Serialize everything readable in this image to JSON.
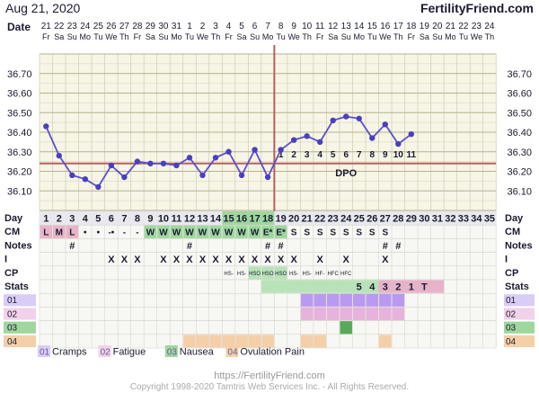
{
  "header": {
    "date": "Aug 21, 2020",
    "site": "FertilityFriend.com"
  },
  "row_labels": {
    "date": "Date",
    "day": "Day",
    "cm": "CM",
    "notes": "Notes",
    "i": "I",
    "cp": "CP",
    "stats": "Stats"
  },
  "chart_data": {
    "type": "line",
    "title": "",
    "xlabel": "Day",
    "ylabel": "",
    "ylim": [
      36.0,
      36.8
    ],
    "yticks": [
      "36.70",
      "36.60",
      "36.50",
      "36.40",
      "36.30",
      "36.20",
      "36.10"
    ],
    "grid": true,
    "coverline": 36.24,
    "ovulation_day": 18,
    "dpo_label": "DPO",
    "dates_top": [
      "21",
      "22",
      "23",
      "24",
      "25",
      "26",
      "27",
      "28",
      "29",
      "30",
      "31",
      "1",
      "2",
      "3",
      "4",
      "5",
      "6",
      "7",
      "8",
      "9",
      "10",
      "11",
      "12",
      "13",
      "14",
      "15",
      "16",
      "17",
      "18",
      "19",
      "20",
      "21",
      "22",
      "23",
      "24"
    ],
    "weekdays": [
      "Fr",
      "Sa",
      "Su",
      "Mo",
      "Tu",
      "We",
      "Th",
      "Fr",
      "Sa",
      "Su",
      "Mo",
      "Tu",
      "We",
      "Th",
      "Fr",
      "Sa",
      "Su",
      "Mo",
      "Tu",
      "We",
      "Th",
      "Fr",
      "Sa",
      "Su",
      "Mo",
      "Tu",
      "We",
      "Th",
      "Fr",
      "Sa",
      "Su",
      "Mo",
      "Tu",
      "We",
      "Th"
    ],
    "days": [
      "1",
      "2",
      "3",
      "4",
      "5",
      "6",
      "7",
      "8",
      "9",
      "10",
      "11",
      "12",
      "13",
      "14",
      "15",
      "16",
      "17",
      "18",
      "19",
      "20",
      "21",
      "22",
      "23",
      "24",
      "25",
      "26",
      "27",
      "28",
      "29",
      "30",
      "31",
      "32",
      "33",
      "34",
      "35"
    ],
    "series": [
      {
        "values": [
          36.43,
          36.28,
          36.18,
          36.16,
          36.12,
          36.23,
          36.17,
          36.25,
          36.24,
          36.24,
          36.23,
          36.27,
          36.18,
          36.27,
          36.3,
          36.18,
          36.31,
          36.17,
          36.31,
          36.36,
          36.38,
          36.35,
          36.46,
          36.48,
          36.47,
          36.37,
          36.44,
          36.34,
          36.39
        ]
      }
    ],
    "dpo_numbers": [
      {
        "day": 19,
        "n": "1"
      },
      {
        "day": 20,
        "n": "2"
      },
      {
        "day": 21,
        "n": "3"
      },
      {
        "day": 22,
        "n": "4"
      },
      {
        "day": 23,
        "n": "5"
      },
      {
        "day": 24,
        "n": "6"
      },
      {
        "day": 25,
        "n": "7"
      },
      {
        "day": 26,
        "n": "8"
      },
      {
        "day": 27,
        "n": "9"
      },
      {
        "day": 28,
        "n": "10"
      },
      {
        "day": 29,
        "n": "11"
      }
    ],
    "cm": [
      "L",
      "M",
      "L",
      "•",
      "•",
      "-•",
      "-",
      "-",
      "W",
      "W",
      "W",
      "W",
      "W",
      "W",
      "W",
      "W",
      "W",
      "E*",
      "E*",
      "S",
      "S",
      "S",
      "S",
      "S",
      "S",
      "S",
      "S"
    ],
    "cm_colors": {
      "L": "#e8b4c8",
      "M": "#e8b4c8",
      "W": "#9fd79f",
      "E*": "#9fd79f"
    },
    "notes": {
      "3": "#",
      "12": "#",
      "18": "#",
      "19": "#",
      "27": "#",
      "28": "#"
    },
    "intercourse": {
      "6": "X",
      "7": "X",
      "8": "X",
      "10": "X",
      "11": "X",
      "12": "X",
      "13": "X",
      "14": "X",
      "15": "X",
      "16": "X",
      "17": "X",
      "18": "X",
      "19": "X",
      "20": "X",
      "22": "X",
      "24": "X",
      "27": "X"
    },
    "cp": {
      "15": "HS-",
      "16": "HS-",
      "17": "HSO",
      "18": "HSO",
      "19": "HSO",
      "20": "HS-",
      "21": "HS-",
      "22": "HF-",
      "23": "HFC",
      "24": "HFC"
    },
    "stats": [
      {
        "day": 25,
        "t": "5"
      },
      {
        "day": 26,
        "t": "4"
      },
      {
        "day": 27,
        "t": "3"
      },
      {
        "day": 28,
        "t": "2"
      },
      {
        "day": 29,
        "t": "1"
      },
      {
        "day": 30,
        "t": "T"
      }
    ],
    "symptoms": [
      {
        "code": "01",
        "name": "Cramps",
        "color": "#b99af0",
        "label_color": "#d9ccf7",
        "days": [
          21,
          22,
          23,
          24,
          25,
          26,
          27,
          28
        ]
      },
      {
        "code": "02",
        "name": "Fatigue",
        "color": "#e6b3dc",
        "label_color": "#f1d2ea",
        "days": [
          21,
          22,
          23,
          24,
          25,
          26,
          27,
          28
        ]
      },
      {
        "code": "03",
        "name": "Nausea",
        "color": "#5aa85a",
        "label_color": "#9fd79f",
        "days": [
          24
        ]
      },
      {
        "code": "04",
        "name": "Ovulation Pain",
        "color": "#f4cfa8",
        "label_color": "#f4cfa8",
        "days": [
          12,
          13,
          14,
          15,
          16,
          17,
          18,
          21,
          22,
          27
        ]
      }
    ]
  },
  "footer": {
    "url": "https://FertilityFriend.com",
    "copyright": "Copyright 1998-2020 Tamtris Web Services Inc. - All Rights Reserved."
  }
}
